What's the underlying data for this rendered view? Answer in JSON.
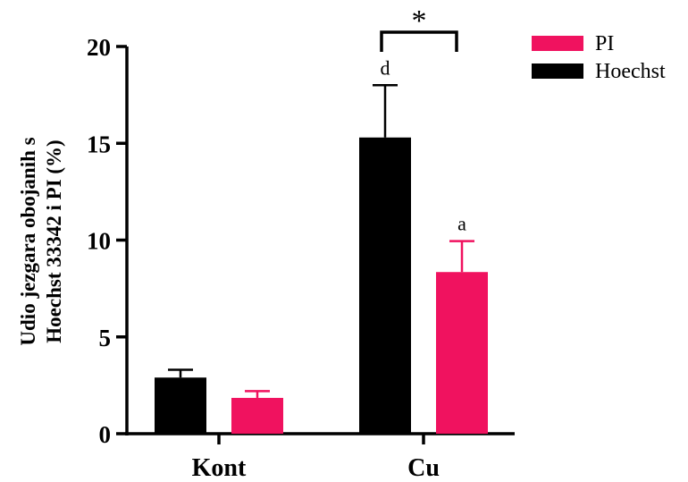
{
  "chart_data": {
    "type": "bar",
    "categories": [
      "Kont",
      "Cu"
    ],
    "series": [
      {
        "name": "Hoechst",
        "color": "#000000",
        "values": [
          2.9,
          15.3
        ],
        "errors": [
          0.4,
          2.7
        ],
        "annotations": [
          "",
          "d"
        ]
      },
      {
        "name": "PI",
        "color": "#f0125f",
        "values": [
          1.85,
          8.35
        ],
        "errors": [
          0.35,
          1.6
        ],
        "annotations": [
          "",
          "a"
        ]
      }
    ],
    "ylabel_lines": [
      "Udio jezgara obojanih s",
      "Hoechst 33342 i PI (%)"
    ],
    "xlabel": "",
    "ylim": [
      0,
      20
    ],
    "yticks": [
      "0",
      "5",
      "10",
      "15",
      "20"
    ],
    "legend": {
      "position": "top-right",
      "order": [
        "PI",
        "Hoechst"
      ]
    },
    "significance": {
      "category": "Cu",
      "label": "*"
    },
    "grid": false
  }
}
